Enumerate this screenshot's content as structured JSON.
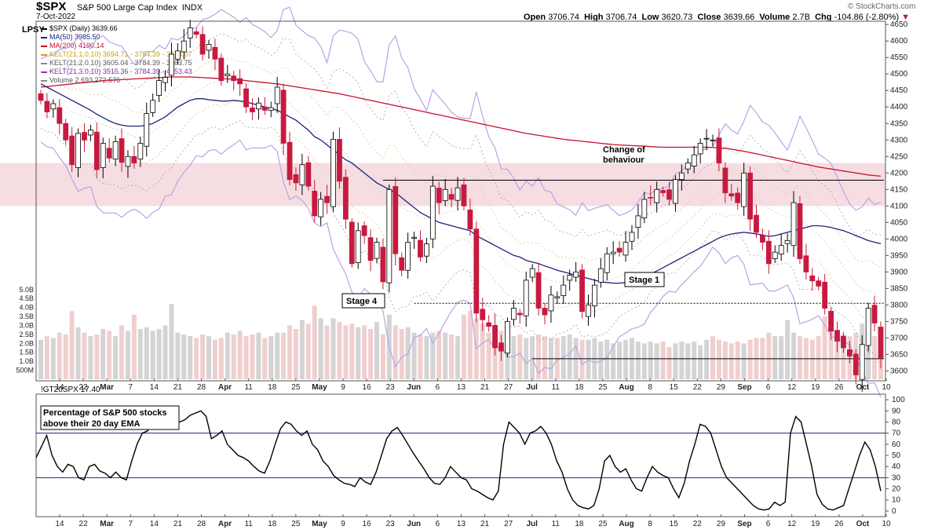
{
  "header": {
    "symbol": "$SPX",
    "name": "S&P 500 Large Cap Index",
    "exchange": "INDX",
    "date": "7-Oct-2022",
    "brand": "© StockCharts.com",
    "open_label": "Open",
    "open": "3706.74",
    "high_label": "High",
    "high": "3706.74",
    "low_label": "Low",
    "low": "3620.73",
    "close_label": "Close",
    "close": "3639.66",
    "volume_label": "Volume",
    "volume": "2.7B",
    "chg_label": "Chg",
    "chg": "-104.86 (-2.80%)"
  },
  "lpsy_label": "LPSY",
  "legend": [
    {
      "text": "$SPX (Daily) 3639.66",
      "color": "#000000"
    },
    {
      "text": "MA(50) 3985.50",
      "color": "#1a237e"
    },
    {
      "text": "MA(200) 4190.14",
      "color": "#c8102e"
    },
    {
      "text": "KELT(21,1.0,10) 3694.71 - 3784.39 - 3874.07",
      "color": "#c8a200"
    },
    {
      "text": "KELT(21,2.0,10) 3605.04 - 3784.39 - 3963.75",
      "color": "#888888"
    },
    {
      "text": "KELT(21,3.0,10) 3515.36 - 3784.39 - 4053.43",
      "color": "#7b2fa3"
    },
    {
      "text": "Volume 2,693,272,576",
      "color": "#888888"
    }
  ],
  "annotations": {
    "change_line1": "Change of",
    "change_line2": "behaviour",
    "stage1": "Stage 1",
    "stage4": "Stage 4",
    "pct_line1": "Percentage of S&P 500 stocks",
    "pct_line2": "above their 20 day EMA"
  },
  "lower_panel": {
    "symbol_line": "!GT20SPX 17.40"
  },
  "colors": {
    "up": "#ffffff",
    "down": "#c8193f",
    "ma50": "#1a237e",
    "ma200": "#c8102e",
    "kelt3": "#b9a3e6",
    "kelt2": "#aaaaaa",
    "kelt1": "#d9cf8a",
    "zone": "#f6dde1",
    "vol_up": "#d4d4d4",
    "vol_down": "#f0cfcf"
  },
  "chart_data": [
    {
      "type": "candlestick",
      "title": "$SPX S&P 500 Large Cap Index",
      "ylim": [
        3570,
        4660
      ],
      "y_ticks": [
        3600,
        3650,
        3700,
        3750,
        3800,
        3850,
        3900,
        3950,
        4000,
        4050,
        4100,
        4150,
        4200,
        4250,
        4300,
        4350,
        4400,
        4450,
        4500,
        4550,
        4600,
        4650
      ],
      "volume_ticks": [
        "500M",
        "1.0B",
        "1.5B",
        "2.0B",
        "2.5B",
        "3.0B",
        "3.5B",
        "4.0B",
        "4.5B",
        "5.0B"
      ],
      "volume_tick_values": [
        0.5,
        1.0,
        1.5,
        2.0,
        2.5,
        3.0,
        3.5,
        4.0,
        4.5,
        5.0
      ],
      "x_tick_labels": [
        "14",
        "22",
        "Mar",
        "7",
        "14",
        "21",
        "28",
        "Apr",
        "11",
        "18",
        "25",
        "May",
        "9",
        "16",
        "23",
        "Jun",
        "6",
        "13",
        "21",
        "27",
        "Jul",
        "11",
        "18",
        "25",
        "Aug",
        "8",
        "15",
        "22",
        "29",
        "Sep",
        "6",
        "12",
        "19",
        "26",
        "Oct",
        "10"
      ],
      "x_tick_bold": [
        "Mar",
        "Apr",
        "May",
        "Jun",
        "Jul",
        "Aug",
        "Sep",
        "Oct"
      ],
      "closes": [
        4420,
        4385,
        4410,
        4350,
        4300,
        4225,
        4320,
        4300,
        4330,
        4210,
        4290,
        4245,
        4295,
        4232,
        4250,
        4230,
        4290,
        4380,
        4420,
        4480,
        4490,
        4560,
        4570,
        4600,
        4640,
        4620,
        4560,
        4590,
        4545,
        4480,
        4500,
        4480,
        4470,
        4400,
        4385,
        4412,
        4390,
        4398,
        4460,
        4290,
        4180,
        4170,
        4225,
        4160,
        4070,
        4120,
        4110,
        4302,
        4175,
        4060,
        3925,
        4025,
        4010,
        3935,
        3990,
        3870,
        4150,
        3955,
        3905,
        3990,
        4005,
        3945,
        3985,
        4160,
        4110,
        4150,
        4120,
        4155,
        4100,
        4030,
        3775,
        3755,
        3735,
        3670,
        3660,
        3750,
        3790,
        3770,
        3875,
        3910,
        3790,
        3770,
        3830,
        3825,
        3860,
        3890,
        3900,
        3780,
        3800,
        3860,
        3910,
        3955,
        3960,
        3960,
        3990,
        4020,
        4070,
        4120,
        4125,
        4150,
        4140,
        4120,
        4180,
        4200,
        4230,
        4255,
        4290,
        4305,
        4300,
        4230,
        4140,
        4130,
        4110,
        4200,
        4060,
        4020,
        3990,
        3925,
        3960,
        3980,
        3995,
        4110,
        3940,
        3900,
        3873,
        3857,
        3790,
        3720,
        3690,
        3670,
        3645,
        3588,
        3680,
        3790,
        3745,
        3639.66
      ],
      "volumes_billion": [
        2.2,
        2.4,
        2.3,
        2.6,
        2.5,
        3.8,
        2.9,
        2.6,
        2.4,
        2.5,
        2.8,
        2.7,
        2.4,
        3.0,
        2.7,
        3.6,
        2.8,
        2.9,
        2.7,
        2.8,
        3.0,
        4.2,
        2.6,
        2.5,
        2.4,
        2.3,
        2.5,
        2.4,
        2.2,
        2.3,
        2.6,
        2.5,
        2.7,
        2.4,
        2.5,
        2.6,
        2.3,
        2.4,
        2.6,
        2.6,
        3.0,
        2.8,
        3.3,
        3.1,
        4.1,
        3.4,
        3.0,
        3.4,
        3.2,
        3.0,
        3.1,
        2.9,
        3.0,
        2.8,
        3.2,
        2.5,
        3.6,
        3.0,
        2.8,
        2.9,
        2.6,
        2.5,
        2.4,
        2.6,
        2.7,
        2.6,
        2.5,
        2.4,
        3.6,
        3.8,
        3.4,
        3.1,
        2.6,
        2.8,
        2.7,
        2.6,
        2.4,
        2.5,
        2.3,
        2.4,
        2.5,
        2.4,
        2.3,
        2.3,
        2.4,
        2.5,
        2.3,
        2.2,
        2.2,
        2.3,
        2.1,
        2.2,
        2.0,
        2.1,
        2.2,
        2.3,
        2.1,
        2.0,
        2.1,
        2.0,
        2.1,
        1.8,
        2.0,
        2.1,
        2.0,
        2.1,
        1.9,
        2.2,
        2.4,
        2.2,
        2.1,
        2.0,
        2.1,
        2.0,
        2.2,
        2.3,
        2.3,
        2.6,
        2.4,
        2.4,
        3.3,
        2.6,
        2.4,
        2.3,
        2.2,
        2.4,
        3.5,
        2.6,
        2.7,
        2.5,
        2.4,
        2.6,
        3.1,
        2.8,
        2.4,
        2.7
      ],
      "ma50": [
        4470,
        4460,
        4450,
        4440,
        4430,
        4420,
        4410,
        4400,
        4390,
        4378,
        4368,
        4358,
        4350,
        4345,
        4342,
        4342,
        4342,
        4345,
        4350,
        4360,
        4370,
        4385,
        4400,
        4410,
        4420,
        4425,
        4425,
        4422,
        4420,
        4418,
        4418,
        4420,
        4418,
        4415,
        4410,
        4405,
        4400,
        4395,
        4390,
        4380,
        4370,
        4360,
        4345,
        4330,
        4310,
        4300,
        4285,
        4270,
        4255,
        4240,
        4230,
        4215,
        4200,
        4185,
        4170,
        4160,
        4150,
        4140,
        4125,
        4110,
        4095,
        4080,
        4070,
        4060,
        4050,
        4045,
        4040,
        4035,
        4030,
        4025,
        4010,
        4000,
        3990,
        3980,
        3970,
        3960,
        3950,
        3945,
        3935,
        3930,
        3925,
        3918,
        3912,
        3905,
        3900,
        3895,
        3890,
        3885,
        3880,
        3875,
        3870,
        3868,
        3866,
        3866,
        3868,
        3872,
        3878,
        3885,
        3893,
        3903,
        3913,
        3923,
        3933,
        3943,
        3953,
        3963,
        3973,
        3983,
        3993,
        4003,
        4010,
        4015,
        4018,
        4020,
        4018,
        4015,
        4012,
        4008,
        4010,
        4015,
        4020,
        4025,
        4030,
        4035,
        4040,
        4040,
        4038,
        4035,
        4030,
        4025,
        4018,
        4010,
        4003,
        3995,
        3990,
        3985.5
      ],
      "ma200": [
        4460,
        4462,
        4464,
        4466,
        4468,
        4470,
        4472,
        4474,
        4476,
        4478,
        4480,
        4481,
        4482,
        4483,
        4484,
        4485,
        4486,
        4487,
        4488,
        4489,
        4490,
        4491,
        4491,
        4491,
        4491,
        4490,
        4489,
        4488,
        4487,
        4486,
        4485,
        4484,
        4482,
        4480,
        4478,
        4476,
        4474,
        4472,
        4470,
        4467,
        4464,
        4461,
        4458,
        4455,
        4452,
        4449,
        4446,
        4443,
        4440,
        4436,
        4432,
        4428,
        4424,
        4420,
        4416,
        4412,
        4408,
        4404,
        4400,
        4396,
        4392,
        4388,
        4384,
        4380,
        4376,
        4372,
        4368,
        4364,
        4360,
        4356,
        4352,
        4348,
        4344,
        4340,
        4336,
        4332,
        4328,
        4324,
        4320,
        4317,
        4314,
        4311,
        4308,
        4305,
        4302,
        4300,
        4298,
        4296,
        4294,
        4292,
        4290,
        4288,
        4286,
        4285,
        4284,
        4283,
        4282,
        4281,
        4280,
        4279,
        4278,
        4278,
        4278,
        4278,
        4278,
        4278,
        4278,
        4278,
        4277,
        4276,
        4275,
        4272,
        4269,
        4266,
        4262,
        4258,
        4254,
        4250,
        4246,
        4242,
        4238,
        4234,
        4230,
        4226,
        4222,
        4218,
        4215,
        4212,
        4209,
        4206,
        4203,
        4200,
        4197,
        4194,
        4192,
        4190.14
      ]
    },
    {
      "type": "line",
      "title": "!GT20SPX",
      "ylim": [
        -5,
        105
      ],
      "y_ticks": [
        0,
        10,
        20,
        30,
        40,
        50,
        60,
        70,
        80,
        90,
        100
      ],
      "reference_lines": [
        70,
        30
      ],
      "values": [
        48,
        58,
        68,
        50,
        40,
        35,
        42,
        40,
        30,
        28,
        40,
        42,
        36,
        34,
        30,
        35,
        30,
        28,
        45,
        60,
        70,
        72,
        85,
        88,
        80,
        75,
        78,
        80,
        82,
        86,
        88,
        90,
        85,
        65,
        68,
        72,
        60,
        55,
        50,
        48,
        45,
        40,
        36,
        34,
        45,
        60,
        74,
        80,
        78,
        72,
        68,
        72,
        60,
        55,
        45,
        40,
        32,
        28,
        25,
        24,
        22,
        30,
        26,
        24,
        35,
        50,
        65,
        72,
        75,
        68,
        60,
        52,
        45,
        38,
        30,
        25,
        24,
        30,
        40,
        35,
        30,
        28,
        20,
        18,
        15,
        12,
        10,
        18,
        60,
        80,
        75,
        70,
        60,
        70,
        72,
        76,
        70,
        60,
        45,
        35,
        20,
        10,
        5,
        3,
        2,
        5,
        20,
        45,
        50,
        40,
        35,
        38,
        28,
        20,
        18,
        30,
        40,
        35,
        32,
        30,
        20,
        12,
        25,
        45,
        60,
        78,
        76,
        70,
        55,
        40,
        30,
        25,
        20,
        15,
        10,
        5,
        2,
        1,
        2,
        8,
        5,
        8,
        70,
        85,
        80,
        60,
        40,
        15,
        6,
        2,
        1,
        3,
        5,
        20,
        35,
        50,
        62,
        55,
        40,
        18
      ]
    }
  ]
}
